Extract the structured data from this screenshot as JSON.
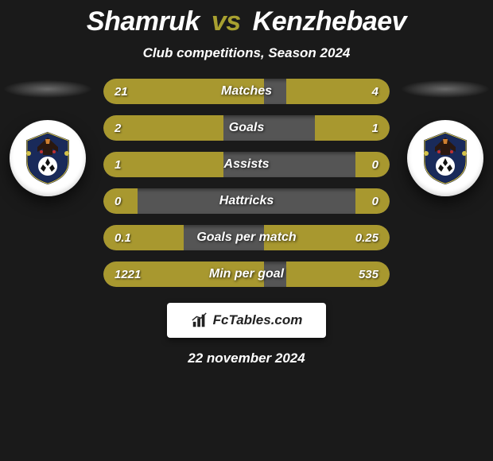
{
  "title": {
    "player1": "Shamruk",
    "vs": "vs",
    "player2": "Kenzhebaev"
  },
  "subtitle": "Club competitions, Season 2024",
  "colors": {
    "p1_bar": "#a8982f",
    "p2_bar": "#a8982f",
    "bar_bg": "#555555",
    "background": "#1a1a1a",
    "text": "#ffffff"
  },
  "stats": [
    {
      "label": "Matches",
      "left_val": "21",
      "right_val": "4",
      "left_pct": 56,
      "right_pct": 36
    },
    {
      "label": "Goals",
      "left_val": "2",
      "right_val": "1",
      "left_pct": 42,
      "right_pct": 26
    },
    {
      "label": "Assists",
      "left_val": "1",
      "right_val": "0",
      "left_pct": 42,
      "right_pct": 12
    },
    {
      "label": "Hattricks",
      "left_val": "0",
      "right_val": "0",
      "left_pct": 12,
      "right_pct": 12
    },
    {
      "label": "Goals per match",
      "left_val": "0.1",
      "right_val": "0.25",
      "left_pct": 28,
      "right_pct": 44
    },
    {
      "label": "Min per goal",
      "left_val": "1221",
      "right_val": "535",
      "left_pct": 56,
      "right_pct": 36
    }
  ],
  "brand": "FcTables.com",
  "date": "22 november 2024"
}
